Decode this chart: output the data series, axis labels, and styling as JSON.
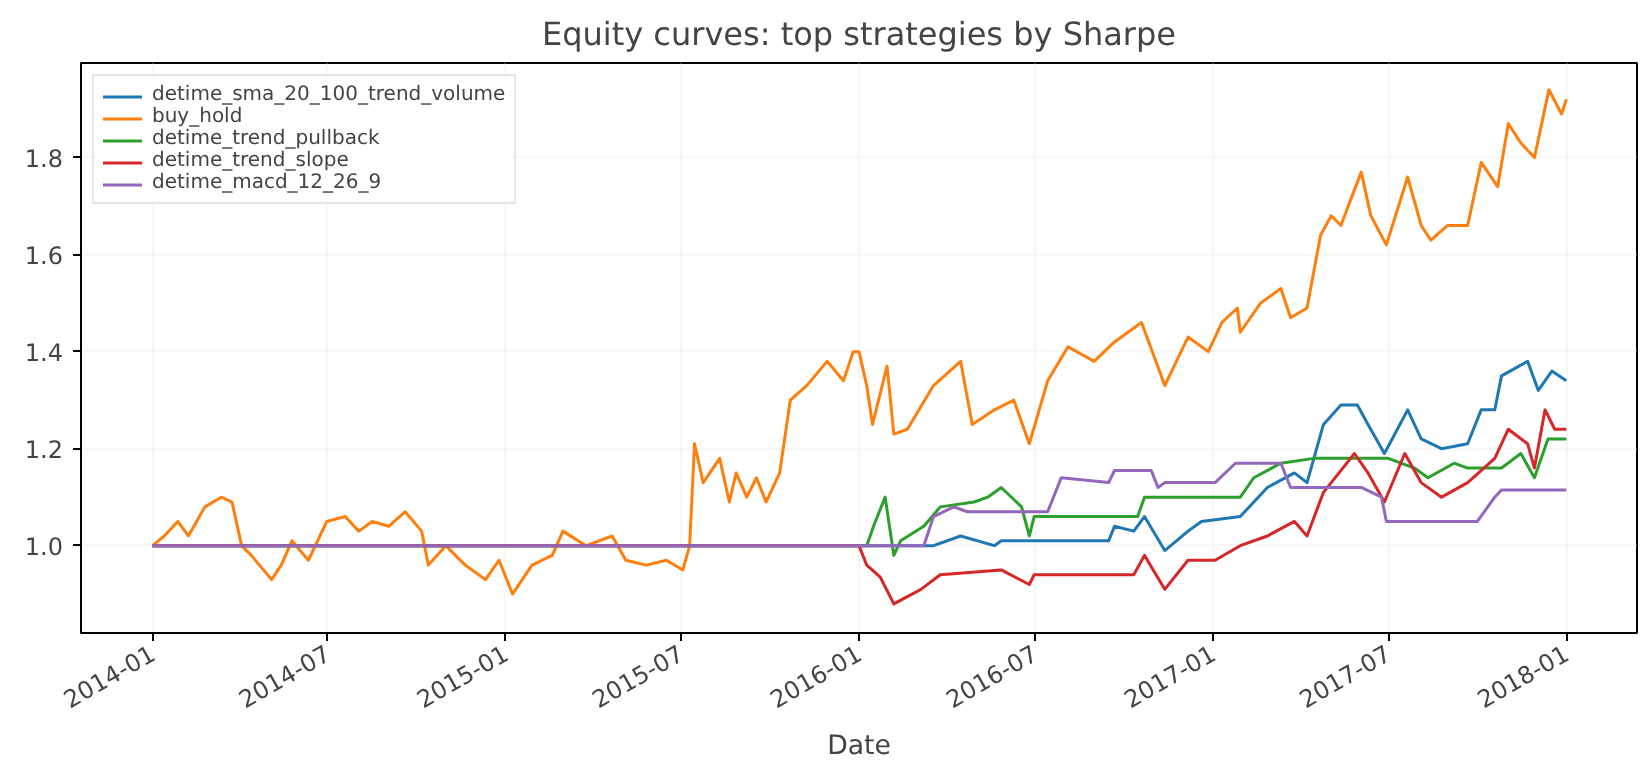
{
  "chart_data": {
    "type": "line",
    "title": "Equity curves: top strategies by Sharpe",
    "xlabel": "Date",
    "xlim": [
      "2013-10-19",
      "2018-03-15"
    ],
    "xticks": [
      {
        "value": "2014-01-01",
        "label": "2014-01"
      },
      {
        "value": "2014-07-01",
        "label": "2014-07"
      },
      {
        "value": "2015-01-01",
        "label": "2015-01"
      },
      {
        "value": "2015-07-01",
        "label": "2015-07"
      },
      {
        "value": "2016-01-01",
        "label": "2016-01"
      },
      {
        "value": "2016-07-01",
        "label": "2016-07"
      },
      {
        "value": "2017-01-01",
        "label": "2017-01"
      },
      {
        "value": "2017-07-01",
        "label": "2017-07"
      },
      {
        "value": "2018-01-01",
        "label": "2018-01"
      }
    ],
    "ylim": [
      0.82,
      1.995
    ],
    "yticks": [
      {
        "value": 1.0,
        "label": "1.0"
      },
      {
        "value": 1.2,
        "label": "1.2"
      },
      {
        "value": 1.4,
        "label": "1.4"
      },
      {
        "value": 1.6,
        "label": "1.6"
      },
      {
        "value": 1.8,
        "label": "1.8"
      }
    ],
    "grid": true,
    "legend": "top left",
    "line_style": "solid",
    "series": [
      {
        "name": "detime_sma_20_100_trend_volume",
        "color": "#1f77b4",
        "x": [
          "2014-01-01",
          "2016-03-18",
          "2016-04-15",
          "2016-05-20",
          "2016-05-27",
          "2016-09-15",
          "2016-09-21",
          "2016-10-11",
          "2016-10-22",
          "2016-11-12",
          "2016-12-06",
          "2016-12-20",
          "2017-01-29",
          "2017-02-26",
          "2017-03-26",
          "2017-04-08",
          "2017-04-25",
          "2017-05-13",
          "2017-05-30",
          "2017-06-10",
          "2017-06-27",
          "2017-07-21",
          "2017-08-04",
          "2017-08-25",
          "2017-09-21",
          "2017-10-05",
          "2017-10-19",
          "2017-10-26",
          "2017-11-22",
          "2017-12-03",
          "2017-12-17",
          "2018-01-01"
        ],
        "values": [
          1.0,
          1.0,
          1.02,
          1.0,
          1.01,
          1.01,
          1.04,
          1.03,
          1.06,
          0.99,
          1.03,
          1.05,
          1.06,
          1.12,
          1.15,
          1.13,
          1.25,
          1.29,
          1.29,
          1.25,
          1.19,
          1.28,
          1.22,
          1.2,
          1.21,
          1.28,
          1.28,
          1.35,
          1.38,
          1.32,
          1.36,
          1.34
        ]
      },
      {
        "name": "buy_hold",
        "color": "#ff7f0e",
        "x": [
          "2014-01-01",
          "2014-01-13",
          "2014-01-27",
          "2014-02-07",
          "2014-02-24",
          "2014-03-13",
          "2014-03-24",
          "2014-04-03",
          "2014-04-13",
          "2014-05-04",
          "2014-05-14",
          "2014-05-25",
          "2014-06-11",
          "2014-06-30",
          "2014-07-19",
          "2014-08-02",
          "2014-08-16",
          "2014-09-02",
          "2014-09-19",
          "2014-10-06",
          "2014-10-13",
          "2014-10-31",
          "2014-11-20",
          "2014-12-11",
          "2014-12-25",
          "2015-01-08",
          "2015-01-28",
          "2015-02-18",
          "2015-03-01",
          "2015-03-25",
          "2015-04-21",
          "2015-05-05",
          "2015-05-26",
          "2015-06-16",
          "2015-07-03",
          "2015-07-10",
          "2015-07-15",
          "2015-07-24",
          "2015-08-10",
          "2015-08-20",
          "2015-08-27",
          "2015-09-07",
          "2015-09-17",
          "2015-09-27",
          "2015-10-11",
          "2015-10-22",
          "2015-11-08",
          "2015-11-29",
          "2015-12-16",
          "2015-12-26",
          "2016-01-01",
          "2016-01-09",
          "2016-01-15",
          "2016-01-30",
          "2016-02-06",
          "2016-02-20",
          "2016-03-18",
          "2016-04-15",
          "2016-04-27",
          "2016-05-20",
          "2016-06-09",
          "2016-06-25",
          "2016-07-14",
          "2016-08-04",
          "2016-08-31",
          "2016-09-21",
          "2016-10-19",
          "2016-11-12",
          "2016-12-06",
          "2016-12-27",
          "2017-01-10",
          "2017-01-26",
          "2017-01-29",
          "2017-02-19",
          "2017-03-12",
          "2017-03-22",
          "2017-04-08",
          "2017-04-22",
          "2017-05-03",
          "2017-05-13",
          "2017-06-03",
          "2017-06-13",
          "2017-06-29",
          "2017-07-21",
          "2017-08-04",
          "2017-08-14",
          "2017-08-31",
          "2017-09-21",
          "2017-10-05",
          "2017-10-22",
          "2017-11-02",
          "2017-11-15",
          "2017-11-29",
          "2017-12-14",
          "2017-12-27",
          "2018-01-01"
        ],
        "values": [
          1.0,
          1.02,
          1.05,
          1.02,
          1.08,
          1.1,
          1.09,
          1.0,
          0.98,
          0.93,
          0.96,
          1.01,
          0.97,
          1.05,
          1.06,
          1.03,
          1.05,
          1.04,
          1.07,
          1.03,
          0.96,
          1.0,
          0.96,
          0.93,
          0.97,
          0.9,
          0.96,
          0.98,
          1.03,
          1.0,
          1.02,
          0.97,
          0.96,
          0.97,
          0.95,
          1.0,
          1.21,
          1.13,
          1.18,
          1.09,
          1.15,
          1.1,
          1.14,
          1.09,
          1.15,
          1.3,
          1.33,
          1.38,
          1.34,
          1.4,
          1.4,
          1.33,
          1.25,
          1.37,
          1.23,
          1.24,
          1.33,
          1.38,
          1.25,
          1.28,
          1.3,
          1.21,
          1.34,
          1.41,
          1.38,
          1.42,
          1.46,
          1.33,
          1.43,
          1.4,
          1.46,
          1.49,
          1.44,
          1.5,
          1.53,
          1.47,
          1.49,
          1.64,
          1.68,
          1.66,
          1.77,
          1.68,
          1.62,
          1.76,
          1.66,
          1.63,
          1.66,
          1.66,
          1.79,
          1.74,
          1.87,
          1.83,
          1.8,
          1.94,
          1.89,
          1.92
        ]
      },
      {
        "name": "detime_trend_pullback",
        "color": "#2ca02c",
        "x": [
          "2014-01-01",
          "2016-01-09",
          "2016-01-16",
          "2016-01-28",
          "2016-02-06",
          "2016-02-13",
          "2016-03-08",
          "2016-03-25",
          "2016-04-29",
          "2016-05-13",
          "2016-05-27",
          "2016-06-17",
          "2016-06-25",
          "2016-06-30",
          "2016-10-15",
          "2016-10-22",
          "2017-01-29",
          "2017-02-12",
          "2017-03-12",
          "2017-04-15",
          "2017-07-01",
          "2017-07-28",
          "2017-08-11",
          "2017-09-07",
          "2017-09-21",
          "2017-10-26",
          "2017-11-15",
          "2017-11-29",
          "2017-12-13",
          "2018-01-01"
        ],
        "values": [
          1.0,
          1.0,
          1.04,
          1.1,
          0.98,
          1.01,
          1.04,
          1.08,
          1.09,
          1.1,
          1.12,
          1.08,
          1.02,
          1.06,
          1.06,
          1.1,
          1.1,
          1.14,
          1.17,
          1.18,
          1.18,
          1.16,
          1.14,
          1.17,
          1.16,
          1.16,
          1.19,
          1.14,
          1.22,
          1.22
        ]
      },
      {
        "name": "detime_trend_slope",
        "color": "#d62728",
        "x": [
          "2014-01-01",
          "2016-01-01",
          "2016-01-09",
          "2016-01-23",
          "2016-02-06",
          "2016-03-05",
          "2016-03-25",
          "2016-05-27",
          "2016-06-25",
          "2016-06-30",
          "2016-10-11",
          "2016-10-22",
          "2016-11-12",
          "2016-12-06",
          "2017-01-03",
          "2017-01-29",
          "2017-02-26",
          "2017-03-26",
          "2017-04-08",
          "2017-04-25",
          "2017-05-27",
          "2017-06-10",
          "2017-06-27",
          "2017-07-18",
          "2017-08-04",
          "2017-08-25",
          "2017-09-21",
          "2017-10-19",
          "2017-11-02",
          "2017-11-22",
          "2017-11-29",
          "2017-12-10",
          "2017-12-20",
          "2018-01-01"
        ],
        "values": [
          1.0,
          1.0,
          0.96,
          0.935,
          0.88,
          0.91,
          0.94,
          0.95,
          0.92,
          0.94,
          0.94,
          0.98,
          0.91,
          0.97,
          0.97,
          1.0,
          1.02,
          1.05,
          1.02,
          1.11,
          1.19,
          1.15,
          1.09,
          1.19,
          1.13,
          1.1,
          1.13,
          1.18,
          1.24,
          1.21,
          1.16,
          1.28,
          1.24,
          1.24
        ]
      },
      {
        "name": "detime_macd_12_26_9",
        "color": "#9467bd",
        "x": [
          "2014-01-01",
          "2016-03-08",
          "2016-03-18",
          "2016-04-08",
          "2016-04-22",
          "2016-07-14",
          "2016-07-28",
          "2016-09-15",
          "2016-09-21",
          "2016-10-29",
          "2016-11-05",
          "2016-11-12",
          "2017-01-03",
          "2017-01-24",
          "2017-03-12",
          "2017-03-22",
          "2017-04-01",
          "2017-06-03",
          "2017-06-24",
          "2017-06-29",
          "2017-10-01",
          "2017-10-19",
          "2017-10-26",
          "2018-01-01"
        ],
        "values": [
          1.0,
          1.0,
          1.06,
          1.08,
          1.07,
          1.07,
          1.14,
          1.13,
          1.155,
          1.155,
          1.12,
          1.13,
          1.13,
          1.17,
          1.17,
          1.12,
          1.12,
          1.12,
          1.1,
          1.05,
          1.05,
          1.1,
          1.115,
          1.115
        ]
      }
    ]
  }
}
